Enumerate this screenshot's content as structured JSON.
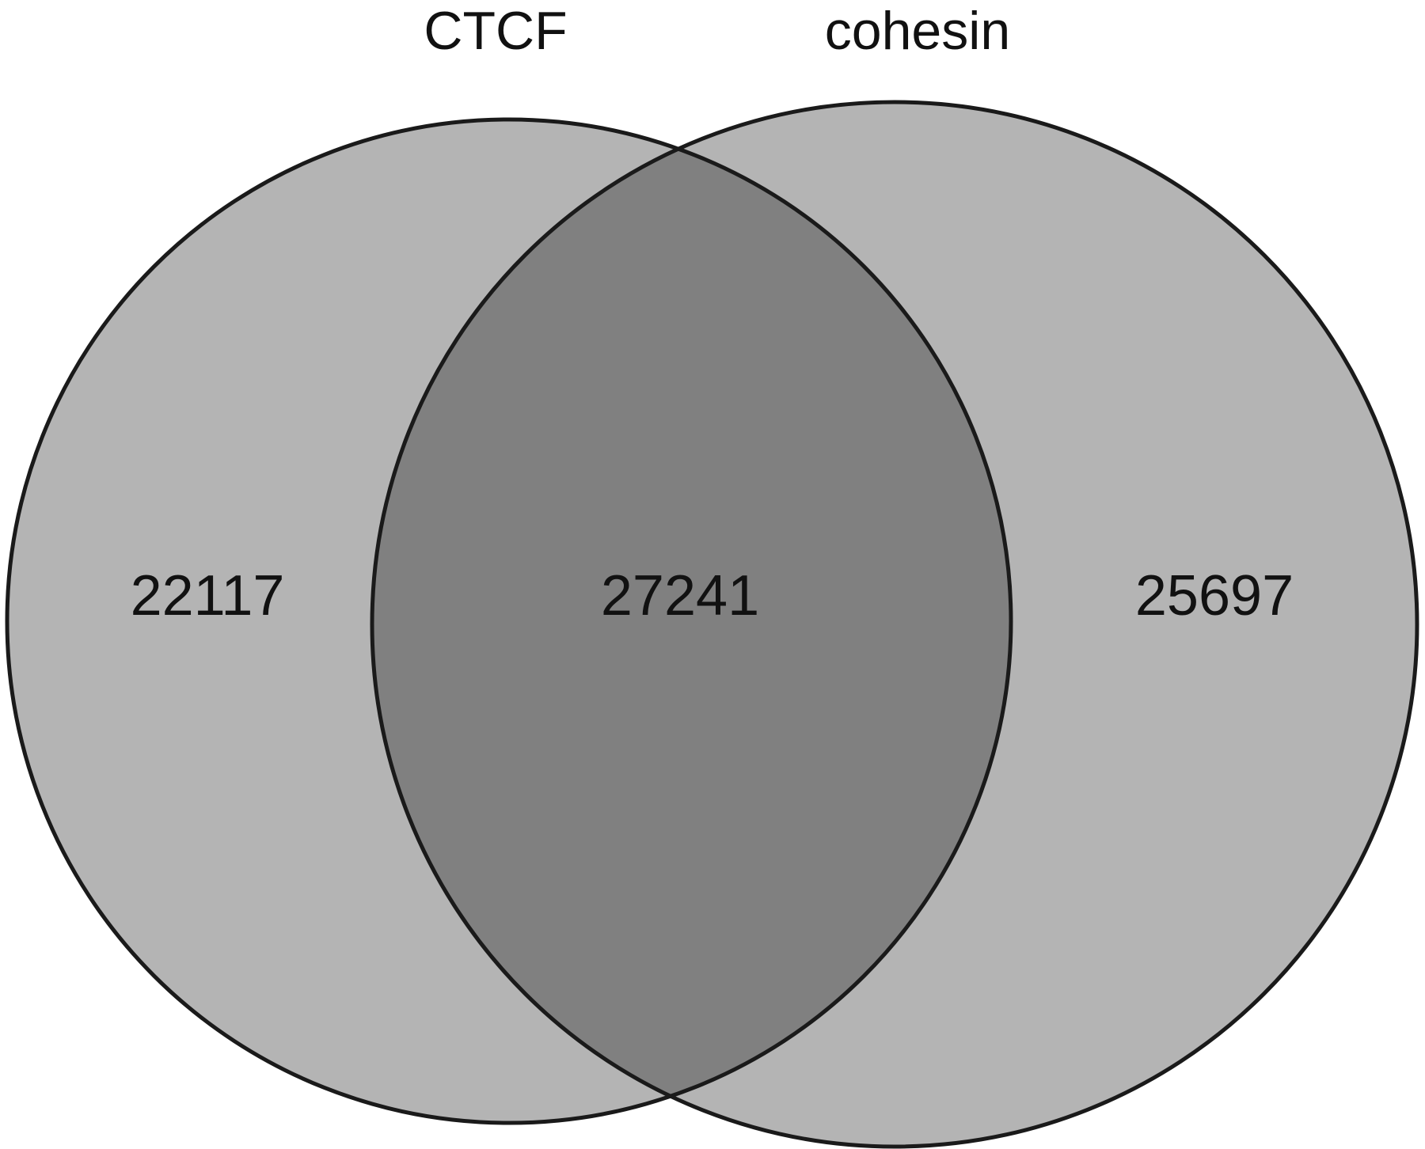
{
  "chart_data": {
    "type": "venn",
    "sets": [
      {
        "name": "CTCF",
        "only": 22117,
        "color": "#b4b4b4"
      },
      {
        "name": "cohesin",
        "only": 25697,
        "color": "#b4b4b4"
      }
    ],
    "intersection": 27241,
    "intersection_color": "#808080"
  }
}
